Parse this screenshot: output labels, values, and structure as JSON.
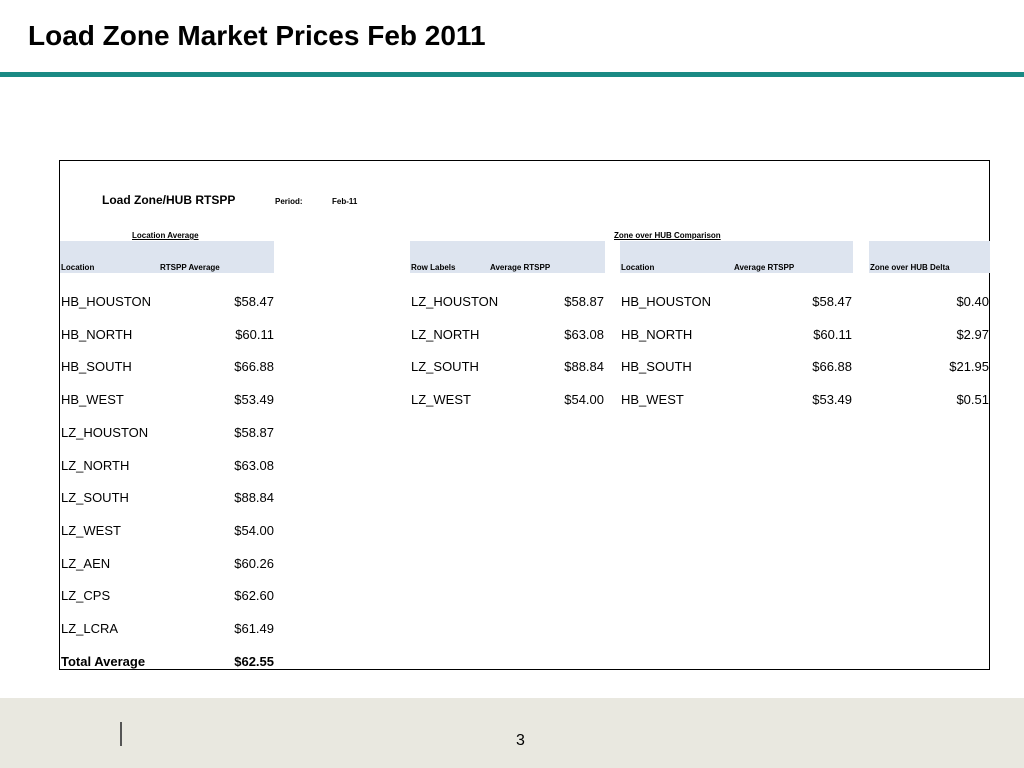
{
  "slide": {
    "title": "Load Zone Market Prices Feb 2011",
    "page_number": "3",
    "accent_color": "#1a8a84"
  },
  "sheet": {
    "title": "Load Zone/HUB RTSPP",
    "period_label": "Period:",
    "period_value": "Feb-11",
    "location_average": {
      "section_label": "Location Average",
      "headers": [
        "Location",
        "RTSPP Average"
      ],
      "rows": [
        [
          "HB_HOUSTON",
          "$58.47"
        ],
        [
          "HB_NORTH",
          "$60.11"
        ],
        [
          "HB_SOUTH",
          "$66.88"
        ],
        [
          "HB_WEST",
          "$53.49"
        ],
        [
          "LZ_HOUSTON",
          "$58.87"
        ],
        [
          "LZ_NORTH",
          "$63.08"
        ],
        [
          "LZ_SOUTH",
          "$88.84"
        ],
        [
          "LZ_WEST",
          "$54.00"
        ],
        [
          "LZ_AEN",
          "$60.26"
        ],
        [
          "LZ_CPS",
          "$62.60"
        ],
        [
          "LZ_LCRA",
          "$61.49"
        ]
      ],
      "total_label": "Total Average",
      "total_value": "$62.55"
    },
    "zone_over_hub": {
      "section_label": "Zone over HUB Comparison",
      "lz_headers": [
        "Row Labels",
        "Average RTSPP"
      ],
      "lz_rows": [
        [
          "LZ_HOUSTON",
          "$58.87"
        ],
        [
          "LZ_NORTH",
          "$63.08"
        ],
        [
          "LZ_SOUTH",
          "$88.84"
        ],
        [
          "LZ_WEST",
          "$54.00"
        ]
      ],
      "hub_headers": [
        "Location",
        "Average RTSPP"
      ],
      "hub_rows": [
        [
          "HB_HOUSTON",
          "$58.47"
        ],
        [
          "HB_NORTH",
          "$60.11"
        ],
        [
          "HB_SOUTH",
          "$66.88"
        ],
        [
          "HB_WEST",
          "$53.49"
        ]
      ],
      "delta_header": "Zone over HUB Delta",
      "delta_values": [
        "$0.40",
        "$2.97",
        "$21.95",
        "$0.51"
      ]
    }
  }
}
